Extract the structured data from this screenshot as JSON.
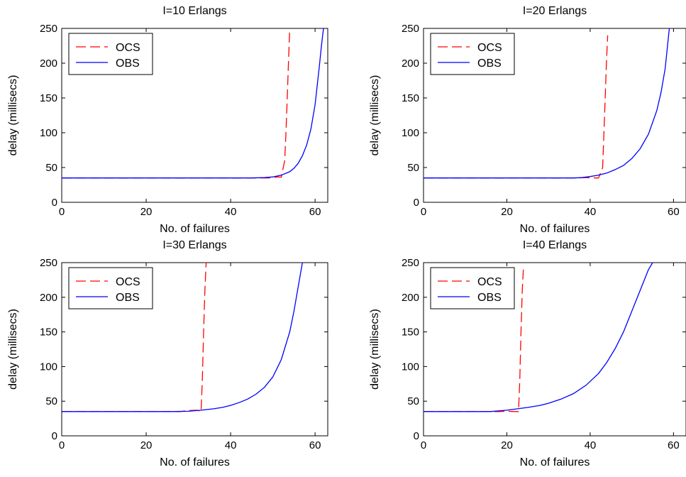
{
  "chart_data": [
    {
      "type": "line",
      "title": "I=10 Erlangs",
      "xlabel": "No. of failures",
      "ylabel": "delay (millisecs)",
      "xlim": [
        0,
        63
      ],
      "ylim": [
        0,
        250
      ],
      "xticks": [
        0,
        20,
        40,
        60
      ],
      "yticks": [
        0,
        50,
        100,
        150,
        200,
        250
      ],
      "legend": {
        "location": "top-left",
        "entries": [
          "OCS",
          "OBS"
        ]
      },
      "grid": false,
      "series": [
        {
          "name": "OCS",
          "color": "#ff0000",
          "style": "dashed",
          "x": [
            0,
            49,
            50,
            51,
            52,
            52.8,
            53.1,
            53.4,
            53.7,
            54.0
          ],
          "y": [
            35,
            35,
            35.5,
            36.5,
            36,
            60,
            100,
            150,
            200,
            250
          ]
        },
        {
          "name": "OBS",
          "color": "#0000ff",
          "style": "solid",
          "x": [
            0,
            45,
            48,
            50,
            52,
            54,
            55,
            56,
            57,
            58,
            59,
            60,
            61,
            61.5,
            62
          ],
          "y": [
            35,
            35,
            35.5,
            36.5,
            39,
            44,
            49,
            56,
            67,
            82,
            105,
            140,
            195,
            225,
            250
          ]
        }
      ]
    },
    {
      "type": "line",
      "title": "I=20 Erlangs",
      "xlabel": "No. of failures",
      "ylabel": "delay (millisecs)",
      "xlim": [
        0,
        63
      ],
      "ylim": [
        0,
        250
      ],
      "xticks": [
        0,
        20,
        40,
        60
      ],
      "yticks": [
        0,
        50,
        100,
        150,
        200,
        250
      ],
      "legend": {
        "location": "top-left",
        "entries": [
          "OCS",
          "OBS"
        ]
      },
      "grid": false,
      "series": [
        {
          "name": "OCS",
          "color": "#ff0000",
          "style": "dashed",
          "x": [
            0,
            37,
            39,
            40.5,
            42,
            43,
            43.3,
            43.6,
            43.9,
            44.2
          ],
          "y": [
            35,
            35,
            35.5,
            35,
            35,
            50,
            100,
            150,
            200,
            240
          ]
        },
        {
          "name": "OBS",
          "color": "#0000ff",
          "style": "solid",
          "x": [
            0,
            36,
            38,
            40,
            42,
            44,
            46,
            48,
            50,
            52,
            54,
            56,
            57,
            58,
            59
          ],
          "y": [
            35,
            35,
            35.5,
            37,
            39,
            42,
            47,
            53,
            63,
            77,
            98,
            132,
            158,
            192,
            250
          ]
        }
      ]
    },
    {
      "type": "line",
      "title": "I=30 Erlangs",
      "xlabel": "No. of failures",
      "ylabel": "delay (millisecs)",
      "xlim": [
        0,
        63
      ],
      "ylim": [
        0,
        250
      ],
      "xticks": [
        0,
        20,
        40,
        60
      ],
      "yticks": [
        0,
        50,
        100,
        150,
        200,
        250
      ],
      "legend": {
        "location": "top-left",
        "entries": [
          "OCS",
          "OBS"
        ]
      },
      "grid": false,
      "series": [
        {
          "name": "OCS",
          "color": "#ff0000",
          "style": "dashed",
          "x": [
            0,
            28,
            30,
            32,
            33,
            33.3,
            33.6,
            33.9,
            34.2
          ],
          "y": [
            35,
            35,
            36.5,
            37,
            35,
            80,
            150,
            210,
            250
          ]
        },
        {
          "name": "OBS",
          "color": "#0000ff",
          "style": "solid",
          "x": [
            0,
            26,
            30,
            33,
            36,
            38,
            40,
            42,
            44,
            46,
            48,
            50,
            52,
            54,
            55,
            56,
            57
          ],
          "y": [
            35,
            35,
            35.5,
            37,
            39,
            41,
            44,
            48,
            53,
            60,
            70,
            85,
            110,
            150,
            180,
            215,
            250
          ]
        }
      ]
    },
    {
      "type": "line",
      "title": "I=40 Erlangs",
      "xlabel": "No. of failures",
      "ylabel": "delay (millisecs)",
      "xlim": [
        0,
        63
      ],
      "ylim": [
        0,
        250
      ],
      "xticks": [
        0,
        20,
        40,
        60
      ],
      "yticks": [
        0,
        50,
        100,
        150,
        200,
        250
      ],
      "legend": {
        "location": "top-left",
        "entries": [
          "OCS",
          "OBS"
        ]
      },
      "grid": false,
      "series": [
        {
          "name": "OCS",
          "color": "#ff0000",
          "style": "dashed",
          "x": [
            0,
            18,
            20,
            22,
            22.8,
            23.1,
            23.4,
            23.7,
            24.0
          ],
          "y": [
            35,
            35,
            35.5,
            35,
            35,
            80,
            150,
            210,
            245
          ]
        },
        {
          "name": "OBS",
          "color": "#0000ff",
          "style": "solid",
          "x": [
            0,
            16,
            20,
            25,
            28,
            30,
            33,
            36,
            39,
            42,
            44,
            46,
            48,
            50,
            52,
            54,
            55
          ],
          "y": [
            35,
            35,
            37,
            41,
            44,
            47,
            53,
            61,
            73,
            90,
            106,
            126,
            150,
            180,
            210,
            240,
            250
          ]
        }
      ]
    }
  ]
}
